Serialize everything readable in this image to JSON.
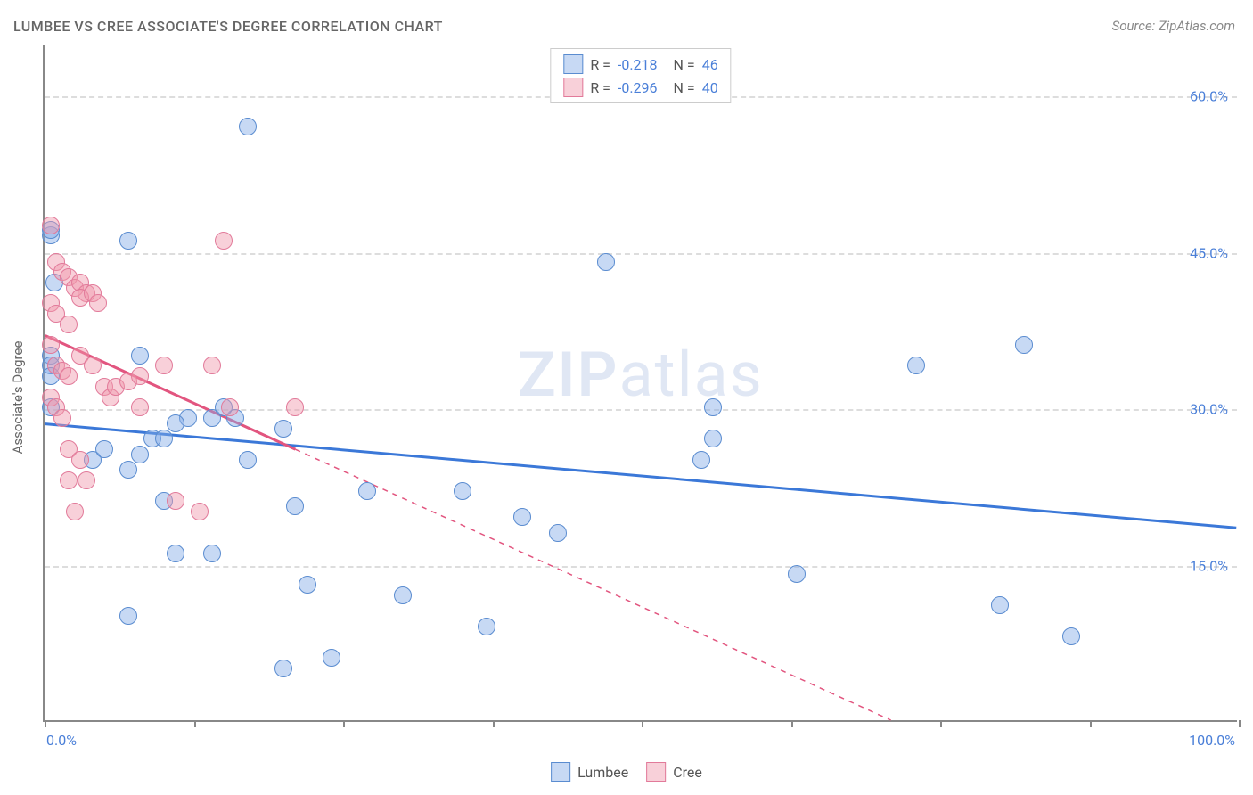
{
  "title": "LUMBEE VS CREE ASSOCIATE'S DEGREE CORRELATION CHART",
  "source": "Source: ZipAtlas.com",
  "y_axis_label": "Associate's Degree",
  "watermark": {
    "bold": "ZIP",
    "light": "atlas"
  },
  "chart": {
    "type": "scatter",
    "background_color": "#ffffff",
    "grid_color": "#dddddd",
    "axis_color": "#888888",
    "xlim": [
      0,
      100
    ],
    "ylim": [
      0,
      65
    ],
    "x_ticks": [
      0,
      12.5,
      25,
      37.5,
      50,
      62.5,
      75,
      87.5,
      100
    ],
    "x_tick_labels": {
      "0": "0.0%",
      "100": "100.0%"
    },
    "y_grid_values": [
      15,
      30,
      45,
      60
    ],
    "y_tick_labels": {
      "15": "15.0%",
      "30": "30.0%",
      "45": "45.0%",
      "60": "60.0%"
    },
    "point_radius": 10,
    "point_border_width": 1.5,
    "series": [
      {
        "name": "Lumbee",
        "color_fill": "rgba(130, 170, 230, 0.45)",
        "color_stroke": "#5a8cd0",
        "r_value": "-0.218",
        "n_value": "46",
        "trend": {
          "x1": 0,
          "y1": 28.5,
          "x2": 100,
          "y2": 18.5,
          "solid_until_x": 100,
          "line_width": 3,
          "color": "#3b78d8"
        },
        "points": [
          [
            0.5,
            46.5
          ],
          [
            0.5,
            47
          ],
          [
            0.8,
            42
          ],
          [
            0.5,
            35
          ],
          [
            0.5,
            34
          ],
          [
            0.5,
            33
          ],
          [
            0.5,
            30
          ],
          [
            7,
            46
          ],
          [
            8,
            25.5
          ],
          [
            4,
            25
          ],
          [
            5,
            26
          ],
          [
            7,
            24
          ],
          [
            9,
            27
          ],
          [
            10,
            27
          ],
          [
            12,
            29
          ],
          [
            14,
            29
          ],
          [
            16,
            29
          ],
          [
            11,
            28.5
          ],
          [
            8,
            35
          ],
          [
            15,
            30
          ],
          [
            17,
            57
          ],
          [
            10,
            21
          ],
          [
            7,
            10
          ],
          [
            11,
            16
          ],
          [
            14,
            16
          ],
          [
            17,
            25
          ],
          [
            20,
            28
          ],
          [
            21,
            20.5
          ],
          [
            22,
            13
          ],
          [
            24,
            6
          ],
          [
            20,
            5
          ],
          [
            27,
            22
          ],
          [
            30,
            12
          ],
          [
            35,
            22
          ],
          [
            37,
            9
          ],
          [
            40,
            19.5
          ],
          [
            43,
            18
          ],
          [
            47,
            44
          ],
          [
            56,
            27
          ],
          [
            55,
            25
          ],
          [
            56,
            30
          ],
          [
            63,
            14
          ],
          [
            73,
            34
          ],
          [
            80,
            11
          ],
          [
            82,
            36
          ],
          [
            86,
            8
          ]
        ]
      },
      {
        "name": "Cree",
        "color_fill": "rgba(240, 150, 170, 0.45)",
        "color_stroke": "#e27a9a",
        "r_value": "-0.296",
        "n_value": "40",
        "trend": {
          "x1": 0,
          "y1": 37,
          "x2": 71,
          "y2": 0,
          "solid_until_x": 21,
          "line_width": 3,
          "color": "#e2557f"
        },
        "points": [
          [
            0.5,
            47.5
          ],
          [
            1,
            44
          ],
          [
            1.5,
            43
          ],
          [
            2,
            42.5
          ],
          [
            2.5,
            41.5
          ],
          [
            3,
            42
          ],
          [
            3.5,
            41
          ],
          [
            0.5,
            40
          ],
          [
            1,
            39
          ],
          [
            2,
            38
          ],
          [
            3,
            40.5
          ],
          [
            4,
            41
          ],
          [
            4.5,
            40
          ],
          [
            0.5,
            36
          ],
          [
            1,
            34
          ],
          [
            1.5,
            33.5
          ],
          [
            2,
            33
          ],
          [
            0.5,
            31
          ],
          [
            1,
            30
          ],
          [
            1.5,
            29
          ],
          [
            3,
            35
          ],
          [
            4,
            34
          ],
          [
            5,
            32
          ],
          [
            5.5,
            31
          ],
          [
            6,
            32
          ],
          [
            7,
            32.5
          ],
          [
            8,
            33
          ],
          [
            2,
            26
          ],
          [
            3,
            25
          ],
          [
            2,
            23
          ],
          [
            3.5,
            23
          ],
          [
            2.5,
            20
          ],
          [
            8,
            30
          ],
          [
            10,
            34
          ],
          [
            11,
            21
          ],
          [
            13,
            20
          ],
          [
            14,
            34
          ],
          [
            15,
            46
          ],
          [
            15.5,
            30
          ],
          [
            21,
            30
          ]
        ]
      }
    ]
  },
  "legend_labels": {
    "r_prefix": "R =",
    "n_prefix": "N ="
  }
}
